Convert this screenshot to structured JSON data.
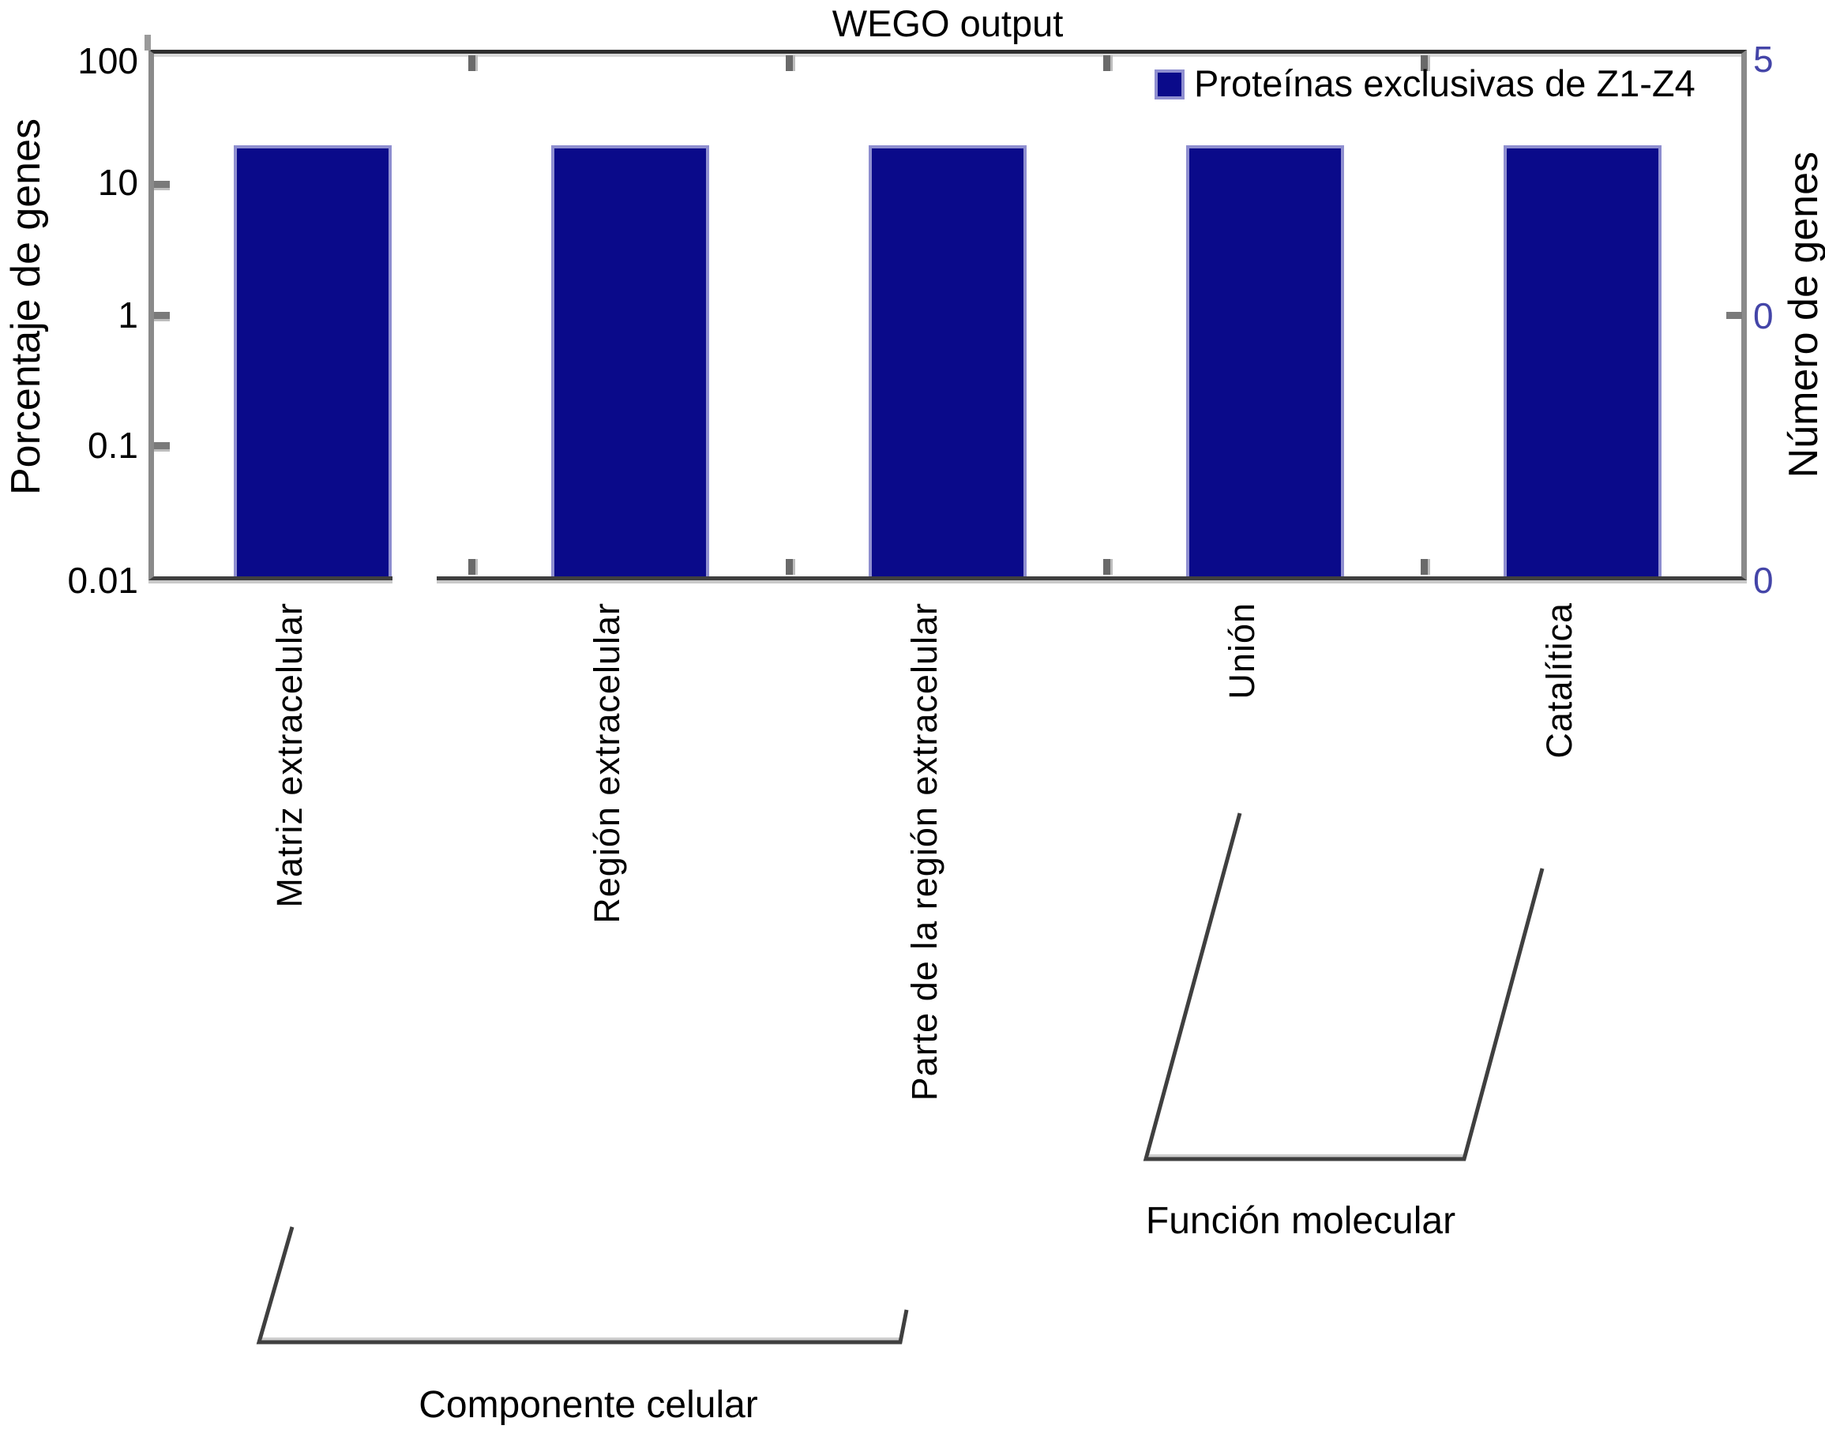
{
  "title": "WEGO output",
  "legend": {
    "label": "Proteínas exclusivas de Z1-Z4"
  },
  "axes": {
    "left": {
      "label": "Porcentaje de genes",
      "ticks": [
        "100",
        "10",
        "1",
        "0.1",
        "0.01"
      ]
    },
    "right": {
      "label": "Número de genes",
      "ticks": [
        "5",
        "0",
        "0"
      ]
    }
  },
  "groups": {
    "cellular": "Componente celular",
    "molecular": "Función molecular"
  },
  "colors": {
    "bar_fill": "#0a0a8a",
    "bar_border": "#8f8fd0",
    "right_axis_text": "#4445a8",
    "frame_gray": "#8a8a8a",
    "bracket_line": "#3f3f3f"
  },
  "chart_data": {
    "type": "bar",
    "title": "WEGO output",
    "categories": [
      "Matriz extracelular",
      "Región extracelular",
      "Parte de la región extracelular",
      "Unión",
      "Catalítica"
    ],
    "series": [
      {
        "name": "Proteínas exclusivas de Z1-Z4",
        "values": [
          20,
          20,
          20,
          20,
          20
        ]
      }
    ],
    "ylabel_left": "Porcentaje de genes",
    "ylabel_right": "Número de genes",
    "yscale": "log",
    "ylim": [
      0.01,
      100
    ],
    "left_tick_labels": [
      "100",
      "10",
      "1",
      "0.1",
      "0.01"
    ],
    "right_tick_labels": [
      "5",
      "0",
      "0"
    ],
    "legend_position": "top-right",
    "grid": false,
    "bar_color": "#0a0a8a",
    "category_groups": [
      {
        "label": "Componente celular",
        "category_indices": [
          0,
          1,
          2
        ]
      },
      {
        "label": "Función molecular",
        "category_indices": [
          3,
          4
        ]
      }
    ]
  }
}
